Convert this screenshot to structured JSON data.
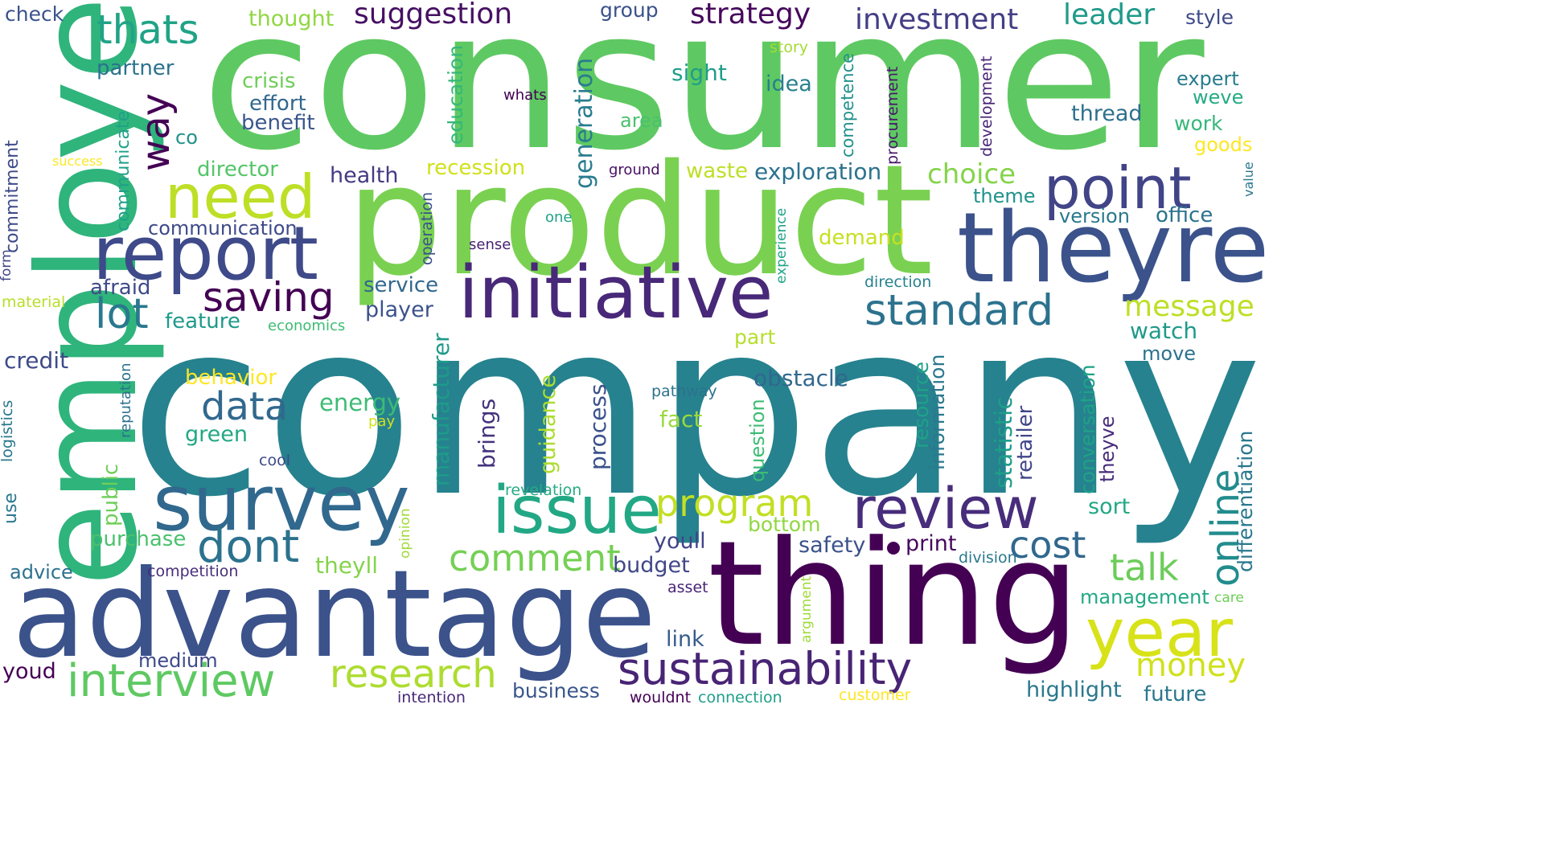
{
  "palette": {
    "dark_purple": "#440154",
    "indigo": "#46337e",
    "blue": "#365c8d",
    "steel_blue": "#31688e",
    "teal": "#21918c",
    "sea_green": "#2a788e",
    "green": "#35b779",
    "light_green": "#6ece58",
    "lime": "#b5de2b",
    "yellow": "#fde725"
  },
  "words": [
    {
      "text": "consumer",
      "color": "#5ec962"
    },
    {
      "text": "company",
      "color": "#26828e"
    },
    {
      "text": "product",
      "color": "#7ad151"
    },
    {
      "text": "employee",
      "color": "#2fb47c"
    },
    {
      "text": "thing",
      "color": "#440154"
    },
    {
      "text": "advantage",
      "color": "#3b528b"
    },
    {
      "text": "theyre",
      "color": "#3b528b"
    },
    {
      "text": "initiative",
      "color": "#482878"
    },
    {
      "text": "report",
      "color": "#3e4a89"
    },
    {
      "text": "survey",
      "color": "#31688e"
    },
    {
      "text": "issue",
      "color": "#22a884"
    },
    {
      "text": "review",
      "color": "#472d7b"
    },
    {
      "text": "need",
      "color": "#bddf26"
    },
    {
      "text": "point",
      "color": "#414487"
    },
    {
      "text": "year",
      "color": "#d8e219"
    },
    {
      "text": "sustainability",
      "color": "#482475"
    },
    {
      "text": "interview",
      "color": "#5ec962"
    },
    {
      "text": "research",
      "color": "#addc30"
    },
    {
      "text": "standard",
      "color": "#2c728e"
    },
    {
      "text": "dont",
      "color": "#2c728e"
    },
    {
      "text": "data",
      "color": "#31688e"
    },
    {
      "text": "program",
      "color": "#c2df23"
    },
    {
      "text": "comment",
      "color": "#75d054"
    },
    {
      "text": "saving",
      "color": "#440154"
    },
    {
      "text": "thats",
      "color": "#20a386"
    },
    {
      "text": "way",
      "color": "#440154"
    },
    {
      "text": "lot",
      "color": "#2a788e"
    },
    {
      "text": "cost",
      "color": "#31688e"
    },
    {
      "text": "online",
      "color": "#228c8d"
    },
    {
      "text": "talk",
      "color": "#6ccd5a"
    },
    {
      "text": "money",
      "color": "#d0e11c"
    },
    {
      "text": "suggestion",
      "color": "#471063"
    },
    {
      "text": "strategy",
      "color": "#46085c"
    },
    {
      "text": "investment",
      "color": "#433e85"
    },
    {
      "text": "leader",
      "color": "#1f9a8a"
    },
    {
      "text": "style",
      "color": "#3e4a89"
    },
    {
      "text": "check",
      "color": "#3b528b"
    },
    {
      "text": "thought",
      "color": "#90d743"
    },
    {
      "text": "group",
      "color": "#3b528b"
    },
    {
      "text": "generation",
      "color": "#287c8e"
    },
    {
      "text": "partner",
      "color": "#2c728e"
    },
    {
      "text": "crisis",
      "color": "#6ece58"
    },
    {
      "text": "effort",
      "color": "#31688e"
    },
    {
      "text": "benefit",
      "color": "#39568c"
    },
    {
      "text": "education",
      "color": "#35b779"
    },
    {
      "text": "whats",
      "color": "#440154"
    },
    {
      "text": "story",
      "color": "#a5db36"
    },
    {
      "text": "sight",
      "color": "#1f9e89"
    },
    {
      "text": "idea",
      "color": "#277f8e"
    },
    {
      "text": "competence",
      "color": "#21918c"
    },
    {
      "text": "procurement",
      "color": "#48186a"
    },
    {
      "text": "development",
      "color": "#482475"
    },
    {
      "text": "expert",
      "color": "#287c8e"
    },
    {
      "text": "weve",
      "color": "#25ab82"
    },
    {
      "text": "thread",
      "color": "#2d708e"
    },
    {
      "text": "work",
      "color": "#35b779"
    },
    {
      "text": "goods",
      "color": "#fde725"
    },
    {
      "text": "value",
      "color": "#2a788e"
    },
    {
      "text": "co",
      "color": "#21918c"
    },
    {
      "text": "communicate",
      "color": "#1fa188"
    },
    {
      "text": "area",
      "color": "#4ac16d"
    },
    {
      "text": "success",
      "color": "#fde725"
    },
    {
      "text": "director",
      "color": "#54c568"
    },
    {
      "text": "commitment",
      "color": "#3e4a89"
    },
    {
      "text": "health",
      "color": "#443a83"
    },
    {
      "text": "recession",
      "color": "#d0e11c"
    },
    {
      "text": "ground",
      "color": "#471063"
    },
    {
      "text": "waste",
      "color": "#bddf26"
    },
    {
      "text": "exploration",
      "color": "#2c728e"
    },
    {
      "text": "choice",
      "color": "#84d44b"
    },
    {
      "text": "theme",
      "color": "#20928c"
    },
    {
      "text": "version",
      "color": "#2a788e"
    },
    {
      "text": "office",
      "color": "#2c728e"
    },
    {
      "text": "communication",
      "color": "#3e4a89"
    },
    {
      "text": "one",
      "color": "#20a386"
    },
    {
      "text": "operation",
      "color": "#3b528b"
    },
    {
      "text": "sense",
      "color": "#481f70"
    },
    {
      "text": "experience",
      "color": "#20a486"
    },
    {
      "text": "demand",
      "color": "#c8e020"
    },
    {
      "text": "form",
      "color": "#414487"
    },
    {
      "text": "afraid",
      "color": "#3e4a89"
    },
    {
      "text": "service",
      "color": "#31688e"
    },
    {
      "text": "direction",
      "color": "#26828e"
    },
    {
      "text": "message",
      "color": "#bddf26"
    },
    {
      "text": "material",
      "color": "#b8de29"
    },
    {
      "text": "player",
      "color": "#3b528b"
    },
    {
      "text": "feature",
      "color": "#1f9a8a"
    },
    {
      "text": "economics",
      "color": "#3dbc74"
    },
    {
      "text": "watch",
      "color": "#1f9a8a"
    },
    {
      "text": "part",
      "color": "#b5de2b"
    },
    {
      "text": "move",
      "color": "#2c728e"
    },
    {
      "text": "credit",
      "color": "#3e4a89"
    },
    {
      "text": "reputation",
      "color": "#2c728e"
    },
    {
      "text": "manufacturer",
      "color": "#1f9a8a"
    },
    {
      "text": "behavior",
      "color": "#fde725"
    },
    {
      "text": "obstacle",
      "color": "#31688e"
    },
    {
      "text": "resource",
      "color": "#1fa188"
    },
    {
      "text": "information",
      "color": "#2a788e"
    },
    {
      "text": "conversation",
      "color": "#1fa188"
    },
    {
      "text": "logistics",
      "color": "#2a788e"
    },
    {
      "text": "energy",
      "color": "#3dbc74"
    },
    {
      "text": "pathway",
      "color": "#2c728e"
    },
    {
      "text": "brings",
      "color": "#46337e"
    },
    {
      "text": "guidance",
      "color": "#addc30"
    },
    {
      "text": "process",
      "color": "#3b528b"
    },
    {
      "text": "question",
      "color": "#3dbc74"
    },
    {
      "text": "statistic",
      "color": "#1f9e89"
    },
    {
      "text": "retailer",
      "color": "#404688"
    },
    {
      "text": "theyve",
      "color": "#472c7a"
    },
    {
      "text": "differentiation",
      "color": "#2a788e"
    },
    {
      "text": "pay",
      "color": "#d0e11c"
    },
    {
      "text": "fact",
      "color": "#9bd93c"
    },
    {
      "text": "green",
      "color": "#22a884"
    },
    {
      "text": "cool",
      "color": "#3e4a89"
    },
    {
      "text": "public",
      "color": "#6ece58"
    },
    {
      "text": "use",
      "color": "#2a788e"
    },
    {
      "text": "revelation",
      "color": "#25ab82"
    },
    {
      "text": "sort",
      "color": "#22a884"
    },
    {
      "text": "purchase",
      "color": "#4ac16d"
    },
    {
      "text": "bottom",
      "color": "#90d743"
    },
    {
      "text": "youll",
      "color": "#414487"
    },
    {
      "text": "safety",
      "color": "#3b528b"
    },
    {
      "text": "print",
      "color": "#46085c"
    },
    {
      "text": "opinion",
      "color": "#a0da39"
    },
    {
      "text": "division",
      "color": "#2a788e"
    },
    {
      "text": "advice",
      "color": "#2c728e"
    },
    {
      "text": "competition",
      "color": "#472d7b"
    },
    {
      "text": "theyll",
      "color": "#84d44b"
    },
    {
      "text": "budget",
      "color": "#404688"
    },
    {
      "text": "management",
      "color": "#22a884"
    },
    {
      "text": "care",
      "color": "#6ece58"
    },
    {
      "text": "asset",
      "color": "#482475"
    },
    {
      "text": "argument",
      "color": "#9fda3a"
    },
    {
      "text": "link",
      "color": "#365c8d"
    },
    {
      "text": "medium",
      "color": "#3e4a89"
    },
    {
      "text": "youd",
      "color": "#440154"
    },
    {
      "text": "business",
      "color": "#39568c"
    },
    {
      "text": "intention",
      "color": "#482878"
    },
    {
      "text": "wouldnt",
      "color": "#440154"
    },
    {
      "text": "connection",
      "color": "#1f9e89"
    },
    {
      "text": "customer",
      "color": "#fde725"
    },
    {
      "text": "highlight",
      "color": "#2a788e"
    },
    {
      "text": "future",
      "color": "#2a788e"
    },
    {
      "text": "dot",
      "color": "#440154"
    }
  ]
}
